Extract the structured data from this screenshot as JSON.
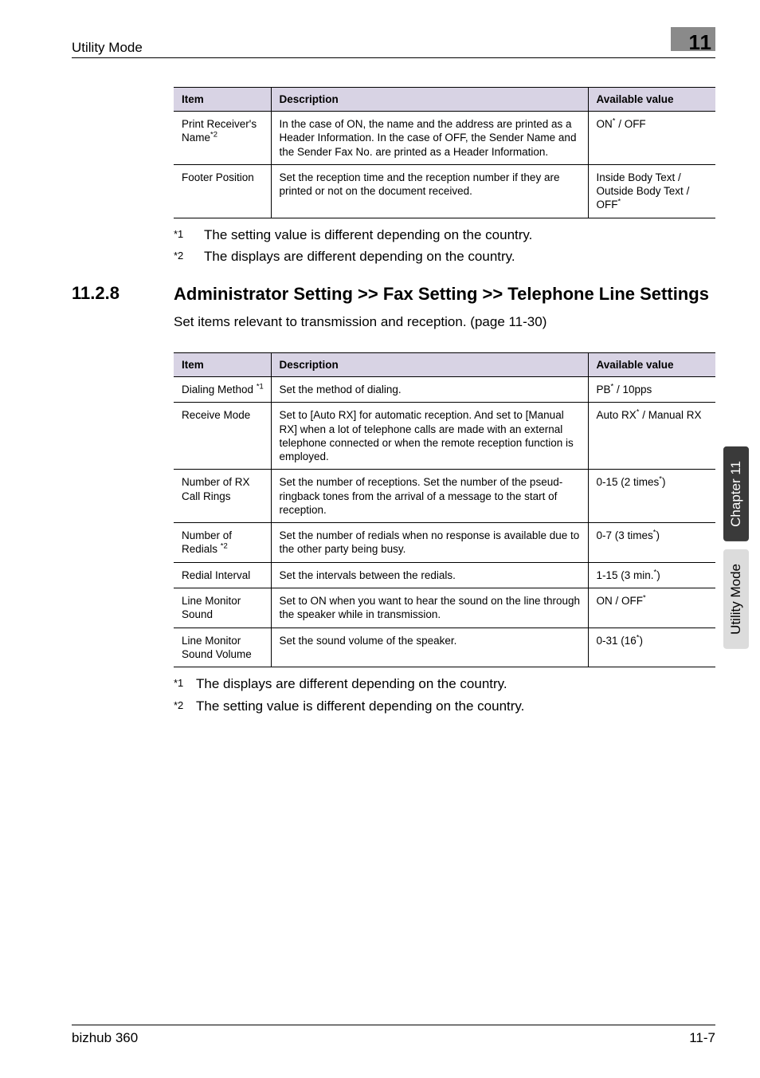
{
  "header": {
    "left": "Utility Mode",
    "badge": "11"
  },
  "tables": {
    "t1": {
      "columns": [
        "Item",
        "Description",
        "Available value"
      ],
      "rows": [
        {
          "item_html": "Print Receiver's Name<sup>*2</sup>",
          "desc": "In the case of ON, the name and the address are printed as a Header Information. In the case of OFF, the Sender Name and the Sender Fax No. are printed as a Header Information.",
          "avail_html": "ON<sup>*</sup> / OFF"
        },
        {
          "item_html": "Footer Position",
          "desc": "Set the reception time and the reception number if they are printed or not on the document received.",
          "avail_html": "Inside Body Text / Outside Body Text / OFF<sup>*</sup>"
        }
      ]
    },
    "t2": {
      "columns": [
        "Item",
        "Description",
        "Available value"
      ],
      "rows": [
        {
          "item_html": "Dialing Method <sup>*1</sup>",
          "desc": "Set the method of dialing.",
          "avail_html": "PB<sup>*</sup> / 10pps"
        },
        {
          "item_html": "Receive Mode",
          "desc": "Set to [Auto RX] for automatic reception. And set to [Manual RX] when a lot of telephone calls are made with an external telephone connected or when the remote reception function is employed.",
          "avail_html": "Auto RX<sup>*</sup> / Manual RX"
        },
        {
          "item_html": "Number of RX Call Rings",
          "desc": "Set the number of receptions.\nSet the number of the pseud-ringback tones from the arrival of a message to the start of reception.",
          "avail_html": "0-15 (2 times<sup>*</sup>)"
        },
        {
          "item_html": "Number of Redials <sup>*2</sup>",
          "desc": "Set the number of redials when no response is available due to the other party being busy.",
          "avail_html": "0-7 (3 times<sup>*</sup>)"
        },
        {
          "item_html": "Redial Interval",
          "desc": "Set the intervals between the redials.",
          "avail_html": "1-15 (3 min.<sup>*</sup>)"
        },
        {
          "item_html": "Line Monitor Sound",
          "desc": "Set to ON when you want to hear the sound on the line through the speaker while in transmission.",
          "avail_html": "ON / OFF<sup>*</sup>"
        },
        {
          "item_html": "Line Monitor Sound Volume",
          "desc": "Set the sound volume of the speaker.",
          "avail_html": "0-31 (16<sup>*</sup>)"
        }
      ]
    }
  },
  "footnotes": {
    "after_t1": [
      {
        "mark": "*1",
        "text": "The setting value is different depending on the country."
      },
      {
        "mark": "*2",
        "text": "The displays are different depending on the country."
      }
    ],
    "after_t2": [
      {
        "mark": "*1",
        "text": "The displays are different depending on the country."
      },
      {
        "mark": "*2",
        "text": "The setting value is different depending on the country."
      }
    ]
  },
  "section": {
    "num": "11.2.8",
    "title": "Administrator Setting >> Fax Setting >> Telephone Line Settings",
    "para": "Set items relevant to transmission and reception. (page 11-30)"
  },
  "side": {
    "tab_dark": "Chapter 11",
    "tab_light": "Utility Mode"
  },
  "footer": {
    "left": "bizhub 360",
    "right": "11-7"
  }
}
